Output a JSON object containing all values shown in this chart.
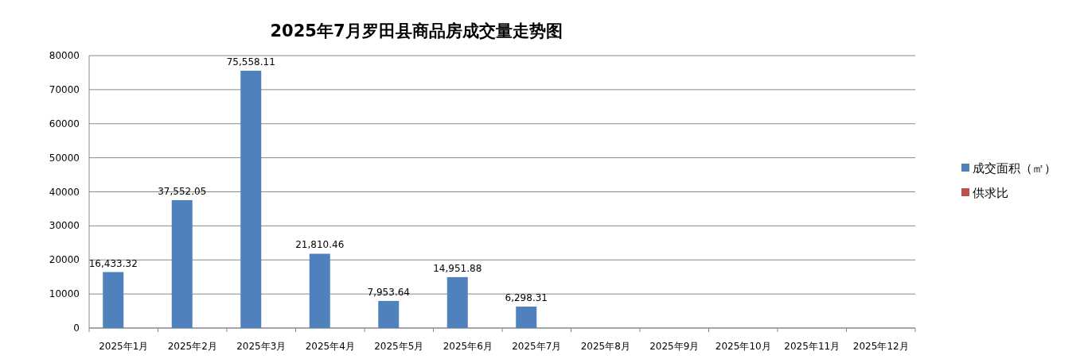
{
  "chart_data": {
    "type": "bar",
    "title": "2025年7月罗田县商品房成交量走势图",
    "categories": [
      "2025年1月",
      "2025年2月",
      "2025年3月",
      "2025年4月",
      "2025年5月",
      "2025年6月",
      "2025年7月",
      "2025年8月",
      "2025年9月",
      "2025年10月",
      "2025年11月",
      "2025年12月"
    ],
    "series": [
      {
        "name": "成交面积（㎡）",
        "color": "#4f81bd",
        "values": [
          16433.32,
          37552.05,
          75558.11,
          21810.46,
          7953.64,
          14951.88,
          6298.31,
          null,
          null,
          null,
          null,
          null
        ],
        "value_labels": [
          "16,433.32",
          "37,552.05",
          "75,558.11",
          "21,810.46",
          "7,953.64",
          "14,951.88",
          "6,298.31",
          null,
          null,
          null,
          null,
          null
        ]
      },
      {
        "name": "供求比",
        "color": "#c0504d",
        "values": [
          null,
          null,
          null,
          null,
          null,
          null,
          null,
          null,
          null,
          null,
          null,
          null
        ]
      }
    ],
    "ylim": [
      0,
      80000
    ],
    "yticks": [
      0,
      10000,
      20000,
      30000,
      40000,
      50000,
      60000,
      70000,
      80000
    ],
    "grid": "y",
    "legend": "right"
  }
}
